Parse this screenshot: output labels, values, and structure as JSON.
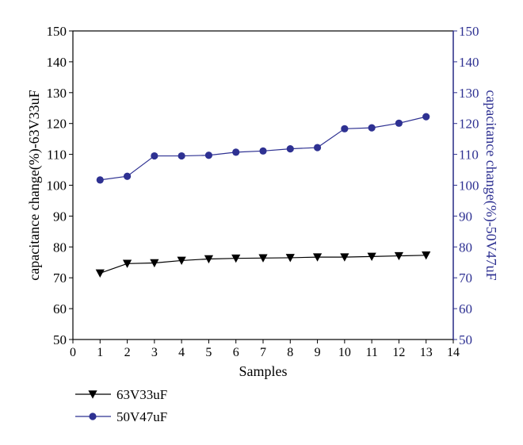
{
  "chart_data": {
    "type": "line",
    "xlabel": "Samples",
    "ylabel_left": "capacitance change(%)-63V33uF",
    "ylabel_right": "capacitance change(%)-50V47uF",
    "xlim": [
      0,
      14
    ],
    "ylim_left": [
      50,
      150
    ],
    "ylim_right": [
      50,
      150
    ],
    "x_ticks": [
      "0",
      "1",
      "2",
      "3",
      "4",
      "5",
      "6",
      "7",
      "8",
      "9",
      "10",
      "11",
      "12",
      "13",
      "14"
    ],
    "y_ticks_left": [
      "50",
      "60",
      "70",
      "80",
      "90",
      "100",
      "110",
      "120",
      "130",
      "140",
      "150"
    ],
    "y_ticks_right": [
      "50",
      "60",
      "70",
      "80",
      "90",
      "100",
      "110",
      "120",
      "130",
      "140",
      "150"
    ],
    "grid": false,
    "legend_position": "bottom-left",
    "x": [
      1,
      2,
      3,
      4,
      5,
      6,
      7,
      8,
      9,
      10,
      11,
      12,
      13
    ],
    "series": [
      {
        "name": "63V33uF",
        "axis": "left",
        "marker": "triangle-down",
        "color": "#000000",
        "values": [
          71.5,
          74.6,
          74.8,
          75.6,
          76.1,
          76.3,
          76.4,
          76.5,
          76.7,
          76.7,
          76.9,
          77.1,
          77.3
        ]
      },
      {
        "name": "50V47uF",
        "axis": "right",
        "marker": "circle",
        "color": "#2e3192",
        "values": [
          101.7,
          102.9,
          109.5,
          109.5,
          109.7,
          110.7,
          111.1,
          111.8,
          112.2,
          118.3,
          118.6,
          120.1,
          122.2
        ]
      }
    ]
  }
}
